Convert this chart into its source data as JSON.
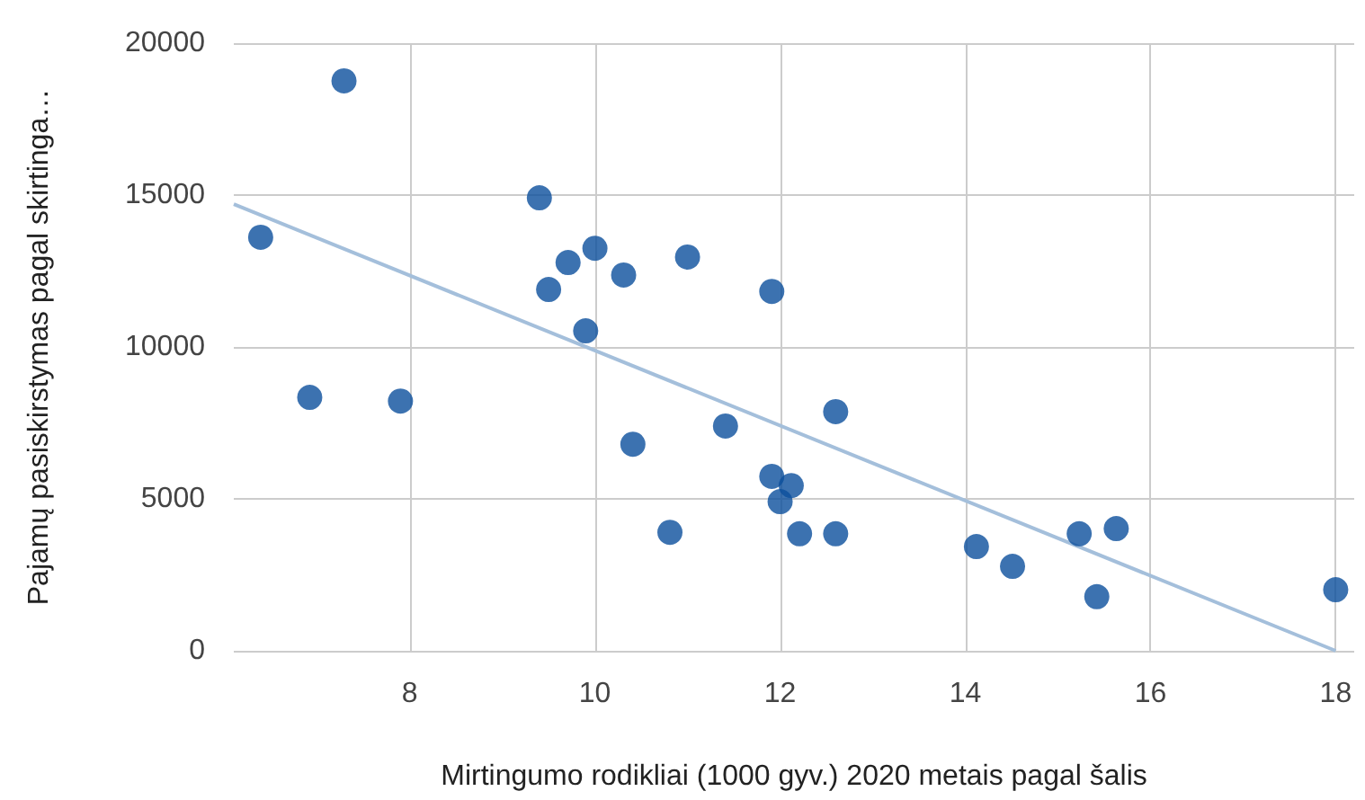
{
  "chart_data": {
    "type": "scatter",
    "xlabel": "Mirtingumo rodikliai (1000 gyv.) 2020 metais pagal šalis",
    "ylabel": "Pajamų pasiskirstymas pagal skirtinga…",
    "xlim": [
      6.1,
      18.2
    ],
    "xticks": [
      8,
      10,
      12,
      14,
      16,
      18
    ],
    "ylim": [
      0,
      20000
    ],
    "yticks": [
      0,
      5000,
      10000,
      15000,
      20000
    ],
    "grid": true,
    "marker": "circle",
    "series": [
      {
        "color": "#0b4f9c",
        "x": [
          6.39,
          6.92,
          7.29,
          7.9,
          9.4,
          9.5,
          9.71,
          9.9,
          10.0,
          10.31,
          10.41,
          10.81,
          11.0,
          11.41,
          11.91,
          11.91,
          12.0,
          12.12,
          12.21,
          12.6,
          12.6,
          14.12,
          14.51,
          15.23,
          15.42,
          15.63,
          18.0
        ],
        "values": [
          13610,
          8340,
          18760,
          8220,
          14910,
          11890,
          12780,
          10530,
          13250,
          12370,
          6800,
          3900,
          12960,
          7400,
          11830,
          5740,
          4910,
          5440,
          3850,
          7870,
          3850,
          3430,
          2780,
          3850,
          1780,
          4020,
          2010
        ]
      },
      {
        "type": "line",
        "color": "#a4bfdb",
        "x": [
          6.1,
          18.0
        ],
        "values": [
          14700,
          0
        ],
        "marker": "none"
      }
    ]
  }
}
